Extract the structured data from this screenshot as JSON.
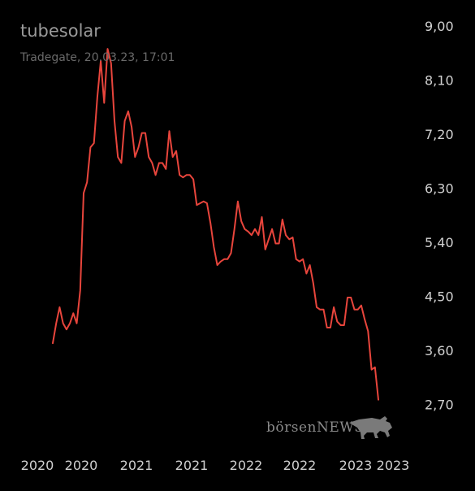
{
  "chart_data": {
    "type": "line",
    "title": "tubesolar",
    "subtitle": "Tradegate, 20.03.23, 17:01",
    "xlabel": "",
    "ylabel": "",
    "ylim": [
      2.2,
      9.0
    ],
    "y_ticks": [
      "9,00",
      "8,10",
      "7,20",
      "6,30",
      "5,40",
      "4,50",
      "3,60",
      "2,70"
    ],
    "x_tick_labels": [
      "2020",
      "2020",
      "2021",
      "2021",
      "2022",
      "2022",
      "2023",
      "2023"
    ],
    "grid": false,
    "legend": "none",
    "colors": {
      "line": "#e8453c",
      "background": "#000000",
      "title": "#9a9a9a",
      "subtitle": "#6a6a6a",
      "axis_text": "#d0d0d0"
    },
    "series": [
      {
        "values": [
          3.72,
          4.05,
          4.32,
          4.05,
          3.95,
          4.05,
          4.22,
          4.05,
          4.6,
          6.22,
          6.4,
          6.98,
          7.05,
          7.82,
          8.42,
          7.72,
          8.62,
          8.38,
          7.42,
          6.82,
          6.72,
          7.42,
          7.58,
          7.32,
          6.82,
          6.98,
          7.22,
          7.22,
          6.82,
          6.72,
          6.52,
          6.72,
          6.72,
          6.62,
          7.25,
          6.82,
          6.92,
          6.52,
          6.48,
          6.52,
          6.52,
          6.45,
          6.02,
          6.05,
          6.08,
          6.05,
          5.72,
          5.32,
          5.02,
          5.08,
          5.12,
          5.12,
          5.22,
          5.62,
          6.08,
          5.75,
          5.62,
          5.58,
          5.52,
          5.62,
          5.52,
          5.82,
          5.28,
          5.45,
          5.62,
          5.38,
          5.38,
          5.78,
          5.52,
          5.45,
          5.48,
          5.12,
          5.08,
          5.12,
          4.88,
          5.02,
          4.72,
          4.32,
          4.28,
          4.28,
          3.98,
          3.98,
          4.32,
          4.08,
          4.02,
          4.02,
          4.48,
          4.48,
          4.28,
          4.28,
          4.35,
          4.12,
          3.92,
          3.28,
          3.32,
          2.78
        ]
      }
    ],
    "watermark": {
      "text": "börsenNEWS",
      "icon": "bull-icon"
    }
  }
}
